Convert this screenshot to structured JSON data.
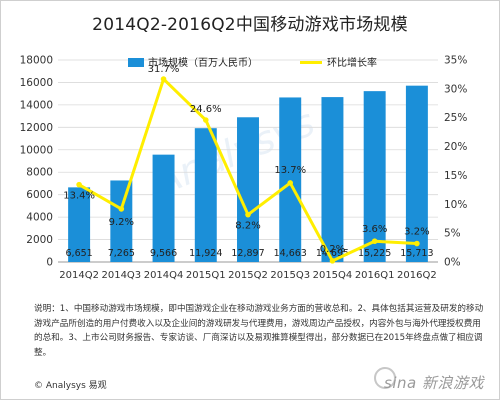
{
  "title": "2014Q2-2016Q2中国移动游戏市场规模",
  "notes": "说明：1、中国移动游戏市场规模，即中国游戏企业在移动游戏业务方面的营收总和。2、具体包括其运营及研发的移动游戏产品所创造的用户付费收入以及企业间的游戏研发与代理费用，游戏周边产品授权，内容外包与海外代理授权费用的总和。3、上市公司财务报告、专家访谈、厂商深访以及易观推算模型得出，部分数据已在2015年终盘点做了相应调整。",
  "copyright": "© Analysys 易观",
  "watermark": "sina 新浪游戏",
  "ghost_watermark": "Analysys",
  "colors": {
    "bar": "#1b8fd8",
    "line": "#ffee00",
    "grid": "#d9d9d9",
    "axis_text": "#333333"
  },
  "chart_data": {
    "type": "bar+line",
    "title": "2014Q2-2016Q2中国移动游戏市场规模",
    "categories": [
      "2014Q2",
      "2014Q3",
      "2014Q4",
      "2015Q1",
      "2015Q2",
      "2015Q3",
      "2015Q4",
      "2016Q1",
      "2016Q2"
    ],
    "series": [
      {
        "name": "市场规模（百万人民币）",
        "type": "bar",
        "axis": "left",
        "values": [
          6651,
          7265,
          9566,
          11924,
          12897,
          14663,
          14695,
          15225,
          15713
        ],
        "labels": [
          "6,651",
          "7,265",
          "9,566",
          "11,924",
          "12,897",
          "14,663",
          "14,695",
          "15,225",
          "15,713"
        ]
      },
      {
        "name": "环比增长率",
        "type": "line",
        "axis": "right",
        "values": [
          13.4,
          9.2,
          31.7,
          24.6,
          8.2,
          13.7,
          0.2,
          3.6,
          3.2
        ],
        "labels": [
          "13.4%",
          "9.2%",
          "31.7%",
          "24.6%",
          "8.2%",
          "13.7%",
          "0.2%",
          "3.6%",
          "3.2%"
        ]
      }
    ],
    "left_axis": {
      "min": 0,
      "max": 18000,
      "ticks": [
        "0",
        "2000",
        "4000",
        "6000",
        "8000",
        "10000",
        "12000",
        "14000",
        "16000",
        "18000"
      ]
    },
    "right_axis": {
      "min": 0,
      "max": 35,
      "ticks": [
        "0%",
        "5%",
        "10%",
        "15%",
        "20%",
        "25%",
        "30%",
        "35%"
      ]
    },
    "grid": true,
    "legend_position": "top"
  }
}
